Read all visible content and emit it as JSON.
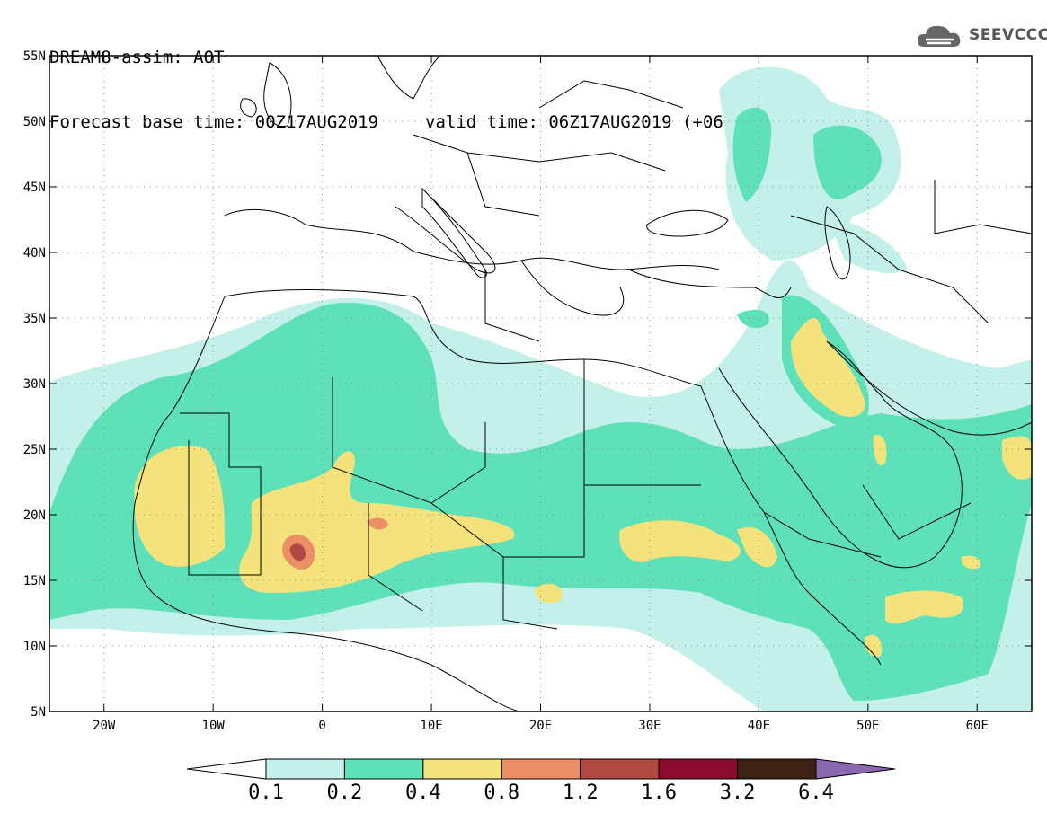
{
  "header": {
    "line1": "DREAM8-assim: AOT",
    "base_time": "Forecast base time: 00Z17AUG2019",
    "valid_time": "valid time: 06Z17AUG2019 (+06)"
  },
  "logo": {
    "text": "SEEVCCC",
    "icon": "cloud-icon",
    "color": "#555555"
  },
  "map": {
    "lon_range": [
      -25,
      65
    ],
    "lat_range": [
      5,
      55
    ],
    "x_ticks": [
      {
        "value": -20,
        "label": "20W"
      },
      {
        "value": -10,
        "label": "10W"
      },
      {
        "value": 0,
        "label": "0"
      },
      {
        "value": 10,
        "label": "10E"
      },
      {
        "value": 20,
        "label": "20E"
      },
      {
        "value": 30,
        "label": "30E"
      },
      {
        "value": 40,
        "label": "40E"
      },
      {
        "value": 50,
        "label": "50E"
      },
      {
        "value": 60,
        "label": "60E"
      }
    ],
    "y_ticks": [
      {
        "value": 5,
        "label": "5N"
      },
      {
        "value": 10,
        "label": "10N"
      },
      {
        "value": 15,
        "label": "15N"
      },
      {
        "value": 20,
        "label": "20N"
      },
      {
        "value": 25,
        "label": "25N"
      },
      {
        "value": 30,
        "label": "30N"
      },
      {
        "value": 35,
        "label": "35N"
      },
      {
        "value": 40,
        "label": "40N"
      },
      {
        "value": 45,
        "label": "45N"
      },
      {
        "value": 50,
        "label": "50N"
      },
      {
        "value": 55,
        "label": "55N"
      }
    ],
    "grid": "dotted"
  },
  "colorbar": {
    "colors": [
      "#ffffff",
      "#c4f0ea",
      "#5ee0b8",
      "#f4e27c",
      "#eb8f64",
      "#b0493f",
      "#8a0d2e",
      "#3e2314",
      "#8a67ae"
    ],
    "labels": [
      "0.1",
      "0.2",
      "0.4",
      "0.8",
      "1.2",
      "1.6",
      "3.2",
      "6.4"
    ]
  }
}
